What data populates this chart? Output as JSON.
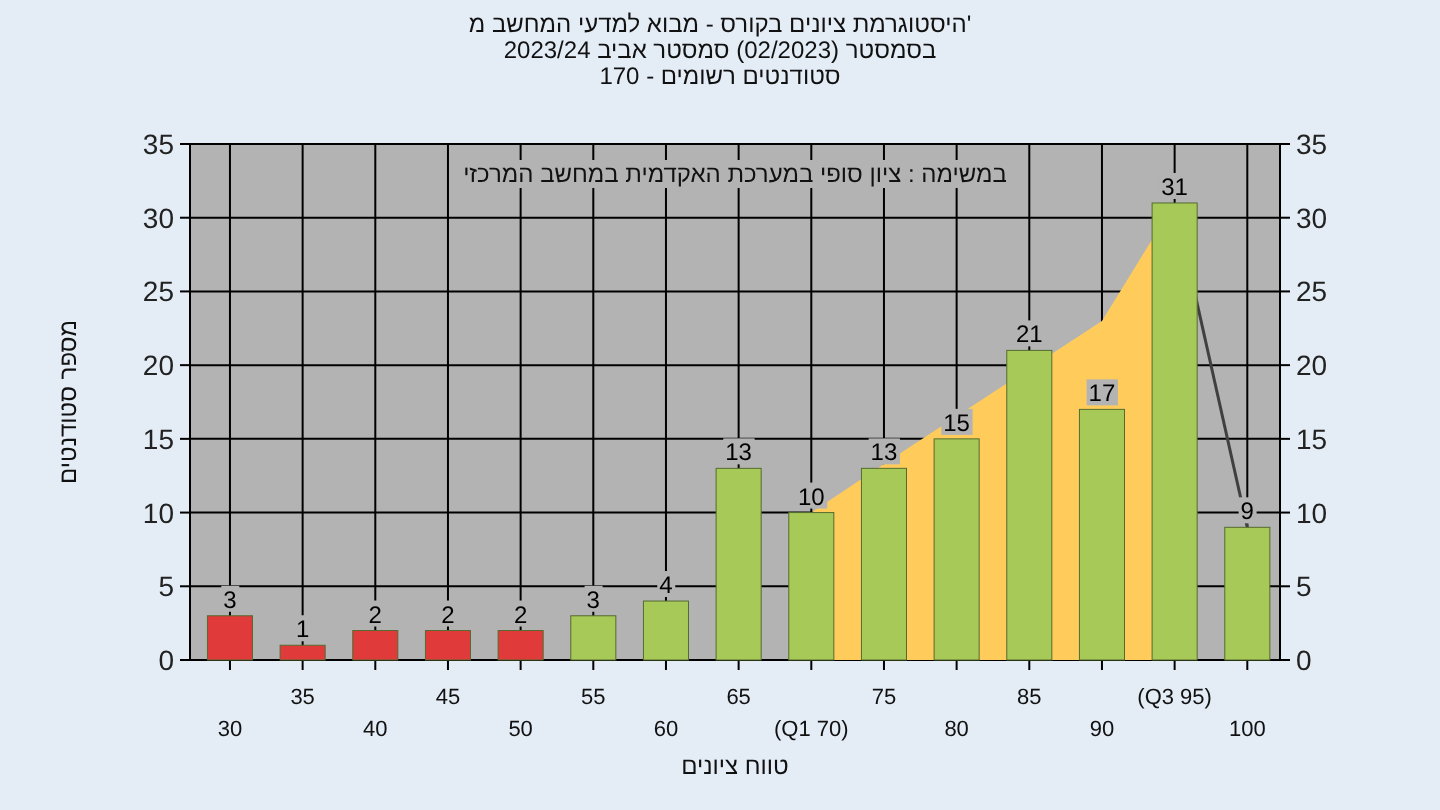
{
  "chart_data": {
    "type": "bar",
    "title": "היסטוגרמת ציונים בקורס - מבוא למדעי המחשב מ'",
    "subtitle": "בסמסטר (02/2023) סמסטר אביב 2023/24",
    "annotations": [
      "סטודנטים רשומים - 170",
      "במשימה : ציון סופי במערכת האקדמית במחשב המרכזי"
    ],
    "xlabel": "טווח ציונים",
    "ylabel": "מספר סטודנטים",
    "categories": [
      "30",
      "35",
      "40",
      "45",
      "50",
      "55",
      "60",
      "65",
      "(Q1 70)",
      "75",
      "80",
      "85",
      "90",
      "(Q3 95)",
      "100"
    ],
    "series": [
      {
        "colors": [
          "#e03a3a",
          "#e03a3a",
          "#e03a3a",
          "#e03a3a",
          "#e03a3a",
          "#a6c957",
          "#a6c957",
          "#a6c957",
          "#a6c957",
          "#a6c957",
          "#a6c957",
          "#a6c957",
          "#a6c957",
          "#a6c957",
          "#a6c957"
        ],
        "values": [
          3,
          1,
          2,
          2,
          2,
          3,
          4,
          13,
          10,
          13,
          15,
          21,
          17,
          31,
          9
        ],
        "value_labels": [
          "3",
          "1",
          "2",
          "2",
          "2",
          "3",
          "4",
          "13",
          "10",
          "13",
          "15",
          "21",
          "17",
          "31",
          "9"
        ]
      },
      {
        "type": "area",
        "color": "#ffcc5c",
        "values": [
          null,
          null,
          null,
          null,
          null,
          null,
          null,
          null,
          10,
          13.3,
          null,
          null,
          23,
          31,
          null
        ]
      },
      {
        "type": "line",
        "color": "#404040",
        "values": [
          null,
          null,
          null,
          null,
          null,
          null,
          null,
          null,
          null,
          null,
          null,
          null,
          null,
          31,
          9
        ]
      }
    ],
    "ylim": [
      0,
      35
    ],
    "yticks": [
      0,
      5,
      10,
      15,
      20,
      25,
      30,
      35
    ],
    "y2lim": [
      0,
      35
    ],
    "y2ticks": [
      0,
      5,
      10,
      15,
      20,
      25,
      30,
      35
    ],
    "grid": true
  }
}
